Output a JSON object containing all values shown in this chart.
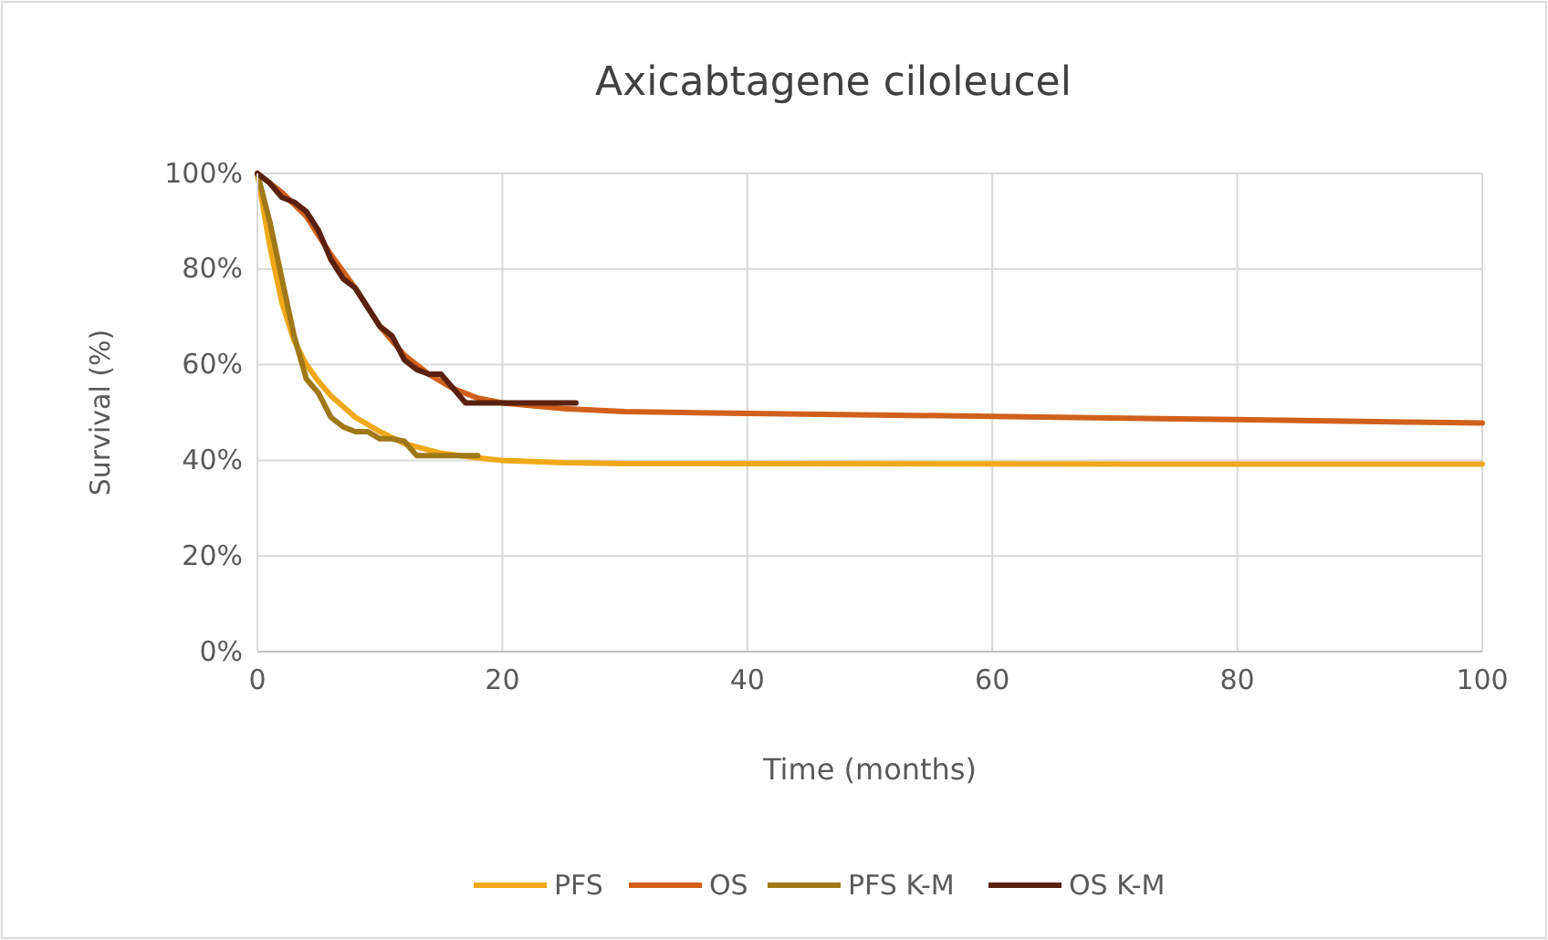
{
  "chart_data": {
    "type": "line",
    "title": "Axicabtagene ciloleucel",
    "xlabel": "Time (months)",
    "ylabel": "Survival (%)",
    "xlim": [
      0,
      100
    ],
    "xticks": [
      0,
      20,
      40,
      60,
      80,
      100
    ],
    "ylim": [
      0,
      100
    ],
    "yticks": [
      {
        "value": 0,
        "label": "0%"
      },
      {
        "value": 20,
        "label": "20%"
      },
      {
        "value": 40,
        "label": "40%"
      },
      {
        "value": 60,
        "label": "60%"
      },
      {
        "value": 80,
        "label": "80%"
      },
      {
        "value": 100,
        "label": "100%"
      }
    ],
    "grid": true,
    "legend": "bottom",
    "marker": "none",
    "line_style": "solid",
    "series": [
      {
        "name": "PFS",
        "color": "#f0a818",
        "x": [
          0,
          1,
          2,
          3,
          4,
          5,
          6,
          8,
          10,
          12,
          15,
          18,
          20,
          25,
          30,
          100
        ],
        "values": [
          100,
          85,
          73,
          65,
          60,
          56.5,
          53.5,
          49,
          46,
          43.5,
          41.5,
          40.5,
          40,
          39.5,
          39.3,
          39.2
        ]
      },
      {
        "name": "OS",
        "color": "#d0601a",
        "x": [
          0,
          2,
          4,
          6,
          8,
          10,
          12,
          14,
          16,
          18,
          20,
          25,
          30,
          40,
          60,
          80,
          100
        ],
        "values": [
          100,
          96,
          91,
          83,
          76,
          68,
          62,
          58,
          55,
          53,
          52,
          50.8,
          50.2,
          49.8,
          49.2,
          48.5,
          47.8
        ]
      },
      {
        "name": "PFS K-M",
        "color": "#a07818",
        "x": [
          0,
          1,
          2,
          3,
          4,
          5,
          6,
          7,
          8,
          9,
          10,
          11,
          12,
          13,
          14,
          16,
          18
        ],
        "values": [
          100,
          90,
          78,
          66,
          57,
          54,
          49,
          47,
          46,
          46,
          44.5,
          44.5,
          44,
          41,
          41,
          41,
          41
        ]
      },
      {
        "name": "OS K-M",
        "color": "#5a2010",
        "x": [
          0,
          1,
          2,
          3,
          4,
          5,
          6,
          7,
          8,
          9,
          10,
          11,
          12,
          13,
          14,
          15,
          16,
          17,
          18,
          20,
          26
        ],
        "values": [
          100,
          98,
          95,
          94,
          92,
          88,
          82,
          78,
          76,
          72,
          68,
          66,
          61,
          59,
          58,
          58,
          55,
          52,
          52,
          52,
          52
        ]
      }
    ]
  }
}
